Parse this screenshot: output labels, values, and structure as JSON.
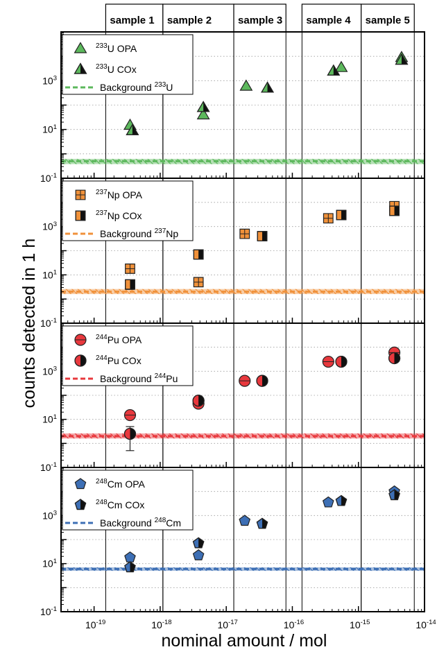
{
  "figure": {
    "ylabel": "counts detected in 1 h",
    "xlabel": "nominal amount / mol",
    "x_axis": {
      "scale": "log",
      "range_exp": [
        -19.5,
        -14
      ],
      "tick_exponents": [
        -19,
        -18,
        -17,
        -16,
        -15,
        -14
      ],
      "tick_labels": [
        "10-19",
        "10-18",
        "10-17",
        "10-16",
        "10-15",
        "10-14"
      ]
    },
    "y_axis": {
      "scale": "log",
      "range_exp": [
        -1,
        5
      ],
      "tick_exponents": [
        -1,
        1,
        3
      ],
      "tick_labels": [
        "10-1",
        "101",
        "103"
      ]
    },
    "samples": [
      {
        "label": "sample 1",
        "x_from": 1.5e-19,
        "x_to": 1.1e-18
      },
      {
        "label": "sample 2",
        "x_from": 1.1e-18,
        "x_to": 1.3e-17
      },
      {
        "label": "sample 3",
        "x_from": 1.3e-17,
        "x_to": 8e-17
      },
      {
        "label": "sample 4",
        "x_from": 1.4e-16,
        "x_to": 1.1e-15
      },
      {
        "label": "sample 5",
        "x_from": 1.1e-15,
        "x_to": 7e-15
      }
    ],
    "grid": "horizontal dotted"
  },
  "chart_data": [
    {
      "type": "scatter",
      "nuclide_mass": "233",
      "element": "U",
      "color": "#5cb85c",
      "marker": "triangle",
      "legend_position": "top-left",
      "series": [
        {
          "name": "233U OPA",
          "style": "filled",
          "points": [
            {
              "x": 3.5e-19,
              "y": 15
            },
            {
              "x": 4.5e-18,
              "y": 40
            },
            {
              "x": 2e-17,
              "y": 600
            },
            {
              "x": 5.5e-16,
              "y": 3500
            },
            {
              "x": 4.5e-15,
              "y": 9000
            }
          ]
        },
        {
          "name": "233U COx",
          "style": "half",
          "points": [
            {
              "x": 3.8e-19,
              "y": 9
            },
            {
              "x": 4.5e-18,
              "y": 80
            },
            {
              "x": 4.2e-17,
              "y": 500
            },
            {
              "x": 4.2e-16,
              "y": 2500
            },
            {
              "x": 4.5e-15,
              "y": 7000
            }
          ]
        }
      ],
      "background": {
        "name": "Background 233U",
        "y": 0.5,
        "band": [
          0.38,
          0.62
        ]
      }
    },
    {
      "type": "scatter",
      "nuclide_mass": "237",
      "element": "Np",
      "color": "#f0913a",
      "marker": "square",
      "legend_position": "top-left",
      "series": [
        {
          "name": "237Np OPA",
          "style": "filled",
          "points": [
            {
              "x": 3.5e-19,
              "y": 18
            },
            {
              "x": 3.8e-18,
              "y": 5
            },
            {
              "x": 1.9e-17,
              "y": 500
            },
            {
              "x": 3.5e-16,
              "y": 2200
            },
            {
              "x": 3.5e-15,
              "y": 7000
            }
          ]
        },
        {
          "name": "237Np COx",
          "style": "half",
          "points": [
            {
              "x": 3.5e-19,
              "y": 4,
              "err": [
                2.5,
                6
              ]
            },
            {
              "x": 3.8e-18,
              "y": 70
            },
            {
              "x": 3.5e-17,
              "y": 400
            },
            {
              "x": 5.5e-16,
              "y": 3000
            },
            {
              "x": 3.5e-15,
              "y": 4500
            }
          ]
        }
      ],
      "background": {
        "name": "Background 237Np",
        "y": 2,
        "band": [
          1.6,
          2.6
        ]
      }
    },
    {
      "type": "scatter",
      "nuclide_mass": "244",
      "element": "Pu",
      "color": "#e8383d",
      "marker": "circle",
      "legend_position": "top-left",
      "series": [
        {
          "name": "244Pu OPA",
          "style": "filled",
          "points": [
            {
              "x": 3.5e-19,
              "y": 15
            },
            {
              "x": 3.8e-18,
              "y": 45
            },
            {
              "x": 1.9e-17,
              "y": 400
            },
            {
              "x": 3.5e-16,
              "y": 2500
            },
            {
              "x": 3.5e-15,
              "y": 6000
            }
          ]
        },
        {
          "name": "244Pu COx",
          "style": "half",
          "points": [
            {
              "x": 3.5e-19,
              "y": 2.5,
              "err": [
                0.5,
                5
              ]
            },
            {
              "x": 3.8e-18,
              "y": 60
            },
            {
              "x": 3.5e-17,
              "y": 400
            },
            {
              "x": 5.5e-16,
              "y": 2500
            },
            {
              "x": 3.5e-15,
              "y": 3500
            }
          ]
        }
      ],
      "background": {
        "name": "Background 244Pu",
        "y": 2,
        "band": [
          1.6,
          2.6
        ]
      }
    },
    {
      "type": "scatter",
      "nuclide_mass": "248",
      "element": "Cm",
      "color": "#3d6fb5",
      "marker": "pentagon",
      "legend_position": "top-left",
      "series": [
        {
          "name": "248Cm OPA",
          "style": "filled",
          "points": [
            {
              "x": 3.5e-19,
              "y": 18
            },
            {
              "x": 3.8e-18,
              "y": 22
            },
            {
              "x": 1.9e-17,
              "y": 600
            },
            {
              "x": 3.5e-16,
              "y": 3500
            },
            {
              "x": 3.5e-15,
              "y": 10000
            }
          ]
        },
        {
          "name": "248Cm COx",
          "style": "half",
          "points": [
            {
              "x": 3.5e-19,
              "y": 7,
              "err": [
                5,
                9
              ]
            },
            {
              "x": 3.8e-18,
              "y": 70
            },
            {
              "x": 3.5e-17,
              "y": 450
            },
            {
              "x": 5.5e-16,
              "y": 4000
            },
            {
              "x": 3.5e-15,
              "y": 7000
            }
          ]
        }
      ],
      "background": {
        "name": "Background 248Cm",
        "y": 6,
        "band": [
          5,
          7
        ]
      }
    }
  ]
}
